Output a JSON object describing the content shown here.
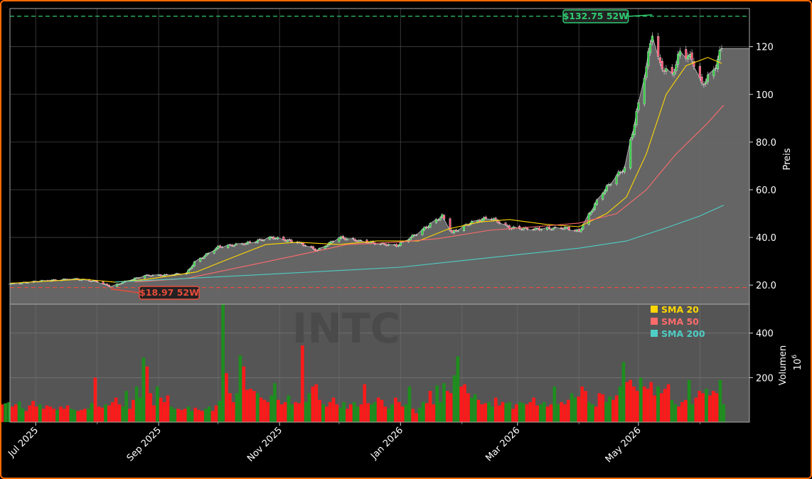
{
  "chart_data": {
    "type": "candlestick",
    "watermark": "INTC",
    "y_axis_label": "Preis",
    "volume_axis_label": "Volumen",
    "volume_unit": "10",
    "volume_unit_exp": "6",
    "y_ticks": [
      20.0,
      40.0,
      60.0,
      80.0,
      100,
      120
    ],
    "y_tick_labels": [
      "20.0",
      "40.0",
      "60.0",
      "80.0",
      "100",
      "120"
    ],
    "y_range": [
      12,
      136
    ],
    "volume_ticks": [
      200,
      400
    ],
    "volume_range": [
      0,
      530
    ],
    "x_tick_labels": [
      "Jul 2025",
      "Sep 2025",
      "Nov 2025",
      "Jan 2026",
      "Mar 2026",
      "May 2026"
    ],
    "x_tick_dates": [
      "2025-07-01",
      "2025-09-01",
      "2025-11-01",
      "2026-01-01",
      "2026-03-01",
      "2026-05-01"
    ],
    "x_range": [
      "2025-06-18",
      "2026-06-26"
    ],
    "annotations": {
      "high": {
        "label": "$132.75 52W",
        "value": 132.75,
        "date": "2026-05-08",
        "color": "#2ecc71"
      },
      "low": {
        "label": "$18.97 52W",
        "value": 18.97,
        "date": "2025-08-08",
        "color": "#e74c3c"
      }
    },
    "legend": {
      "position": "top-right",
      "items": [
        {
          "name": "SMA 20",
          "color": "#ffd700"
        },
        {
          "name": "SMA 50",
          "color": "#ff6b6b"
        },
        {
          "name": "SMA 200",
          "color": "#4ecdc4"
        }
      ]
    },
    "price_anchors": [
      [
        "2025-06-18",
        20.5
      ],
      [
        "2025-07-05",
        21.8
      ],
      [
        "2025-07-20",
        22.6
      ],
      [
        "2025-08-01",
        21.5
      ],
      [
        "2025-08-08",
        19.3
      ],
      [
        "2025-08-15",
        21.5
      ],
      [
        "2025-08-25",
        24.0
      ],
      [
        "2025-09-05",
        24.2
      ],
      [
        "2025-09-15",
        25.0
      ],
      [
        "2025-09-19",
        29.5
      ],
      [
        "2025-10-01",
        36.0
      ],
      [
        "2025-10-15",
        37.5
      ],
      [
        "2025-10-28",
        40.0
      ],
      [
        "2025-11-10",
        38.0
      ],
      [
        "2025-11-20",
        34.5
      ],
      [
        "2025-12-01",
        40.0
      ],
      [
        "2025-12-15",
        38.0
      ],
      [
        "2025-12-30",
        36.5
      ],
      [
        "2026-01-10",
        42.0
      ],
      [
        "2026-01-22",
        49.0
      ],
      [
        "2026-01-27",
        42.0
      ],
      [
        "2026-02-05",
        46.0
      ],
      [
        "2026-02-15",
        48.5
      ],
      [
        "2026-02-25",
        44.0
      ],
      [
        "2026-03-10",
        43.5
      ],
      [
        "2026-03-25",
        44.0
      ],
      [
        "2026-04-01",
        42.5
      ],
      [
        "2026-04-05",
        48.0
      ],
      [
        "2026-04-12",
        58.0
      ],
      [
        "2026-04-20",
        66.0
      ],
      [
        "2026-04-24",
        69.0
      ],
      [
        "2026-04-28",
        84.0
      ],
      [
        "2026-05-05",
        112.0
      ],
      [
        "2026-05-08",
        126.0
      ],
      [
        "2026-05-12",
        112.0
      ],
      [
        "2026-05-18",
        108.0
      ],
      [
        "2026-05-22",
        118.0
      ],
      [
        "2026-05-28",
        115.0
      ],
      [
        "2026-06-02",
        104.0
      ],
      [
        "2026-06-08",
        110.0
      ],
      [
        "2026-06-13",
        122.0
      ]
    ],
    "sma20_anchors": [
      [
        "2025-06-18",
        20.8
      ],
      [
        "2025-07-25",
        22.5
      ],
      [
        "2025-08-10",
        21.2
      ],
      [
        "2025-08-25",
        22.3
      ],
      [
        "2025-09-20",
        25.5
      ],
      [
        "2025-10-05",
        30.5
      ],
      [
        "2025-10-25",
        37.0
      ],
      [
        "2025-11-10",
        38.0
      ],
      [
        "2025-12-01",
        37.0
      ],
      [
        "2025-12-20",
        38.5
      ],
      [
        "2026-01-10",
        38.5
      ],
      [
        "2026-01-25",
        43.5
      ],
      [
        "2026-02-10",
        46.5
      ],
      [
        "2026-02-25",
        47.5
      ],
      [
        "2026-03-15",
        45.5
      ],
      [
        "2026-04-01",
        44.5
      ],
      [
        "2026-04-15",
        50.0
      ],
      [
        "2026-04-25",
        57.0
      ],
      [
        "2026-05-05",
        75.0
      ],
      [
        "2026-05-15",
        100.0
      ],
      [
        "2026-05-25",
        112.0
      ],
      [
        "2026-06-05",
        115.5
      ],
      [
        "2026-06-12",
        113.0
      ]
    ],
    "sma50_anchors": [
      [
        "2025-08-20",
        21.3
      ],
      [
        "2025-09-15",
        22.8
      ],
      [
        "2025-10-15",
        28.0
      ],
      [
        "2025-11-10",
        32.5
      ],
      [
        "2025-12-05",
        37.0
      ],
      [
        "2025-12-30",
        38.0
      ],
      [
        "2026-01-20",
        39.5
      ],
      [
        "2026-02-15",
        43.0
      ],
      [
        "2026-03-10",
        44.5
      ],
      [
        "2026-04-01",
        46.0
      ],
      [
        "2026-04-20",
        50.0
      ],
      [
        "2026-05-05",
        60.0
      ],
      [
        "2026-05-20",
        75.0
      ],
      [
        "2026-06-05",
        88.0
      ],
      [
        "2026-06-13",
        95.5
      ]
    ],
    "sma200_anchors": [
      [
        "2025-08-10",
        21.3
      ],
      [
        "2025-09-15",
        22.8
      ],
      [
        "2025-11-01",
        24.8
      ],
      [
        "2026-01-01",
        27.5
      ],
      [
        "2026-02-15",
        31.5
      ],
      [
        "2026-04-01",
        35.5
      ],
      [
        "2026-04-25",
        38.5
      ],
      [
        "2026-05-15",
        44.0
      ],
      [
        "2026-06-01",
        49.0
      ],
      [
        "2026-06-13",
        53.5
      ]
    ],
    "volume_series": [
      80,
      85,
      90,
      70,
      80,
      92,
      62,
      50,
      75,
      95,
      70,
      80,
      60,
      75,
      70,
      60,
      55,
      70,
      60,
      75,
      60,
      55,
      50,
      55,
      60,
      60,
      85,
      200,
      70,
      65,
      80,
      75,
      90,
      110,
      80,
      70,
      140,
      60,
      100,
      160,
      110,
      290,
      250,
      130,
      75,
      160,
      110,
      90,
      120,
      70,
      60,
      60,
      55,
      60,
      70,
      50,
      65,
      55,
      50,
      60,
      70,
      50,
      75,
      95,
      530,
      220,
      130,
      90,
      130,
      300,
      250,
      145,
      150,
      140,
      130,
      110,
      100,
      90,
      120,
      175,
      100,
      80,
      90,
      120,
      80,
      90,
      85,
      345,
      90,
      130,
      160,
      170,
      100,
      80,
      70,
      90,
      110,
      80,
      65,
      90,
      60,
      80,
      90,
      70,
      80,
      170,
      85,
      80,
      90,
      110,
      100,
      70,
      60,
      80,
      110,
      90,
      70,
      80,
      160,
      60,
      40,
      65,
      90,
      85,
      140,
      80,
      165,
      90,
      175,
      140,
      130,
      210,
      295,
      160,
      170,
      130,
      110,
      125,
      100,
      80,
      85,
      90,
      70,
      110,
      75,
      90,
      85,
      90,
      60,
      80,
      90,
      85,
      80,
      90,
      110,
      75,
      80,
      90,
      70,
      80,
      160,
      80,
      90,
      80,
      100,
      130,
      110,
      115,
      160,
      140,
      90,
      80,
      70,
      130,
      125,
      90,
      115,
      100,
      120,
      160,
      270,
      180,
      190,
      160,
      140,
      200,
      160,
      150,
      180,
      120,
      160,
      130,
      150,
      170,
      100,
      80,
      70,
      90,
      100,
      190,
      80,
      110,
      140,
      130,
      150,
      120,
      140,
      130,
      190,
      80
    ]
  }
}
